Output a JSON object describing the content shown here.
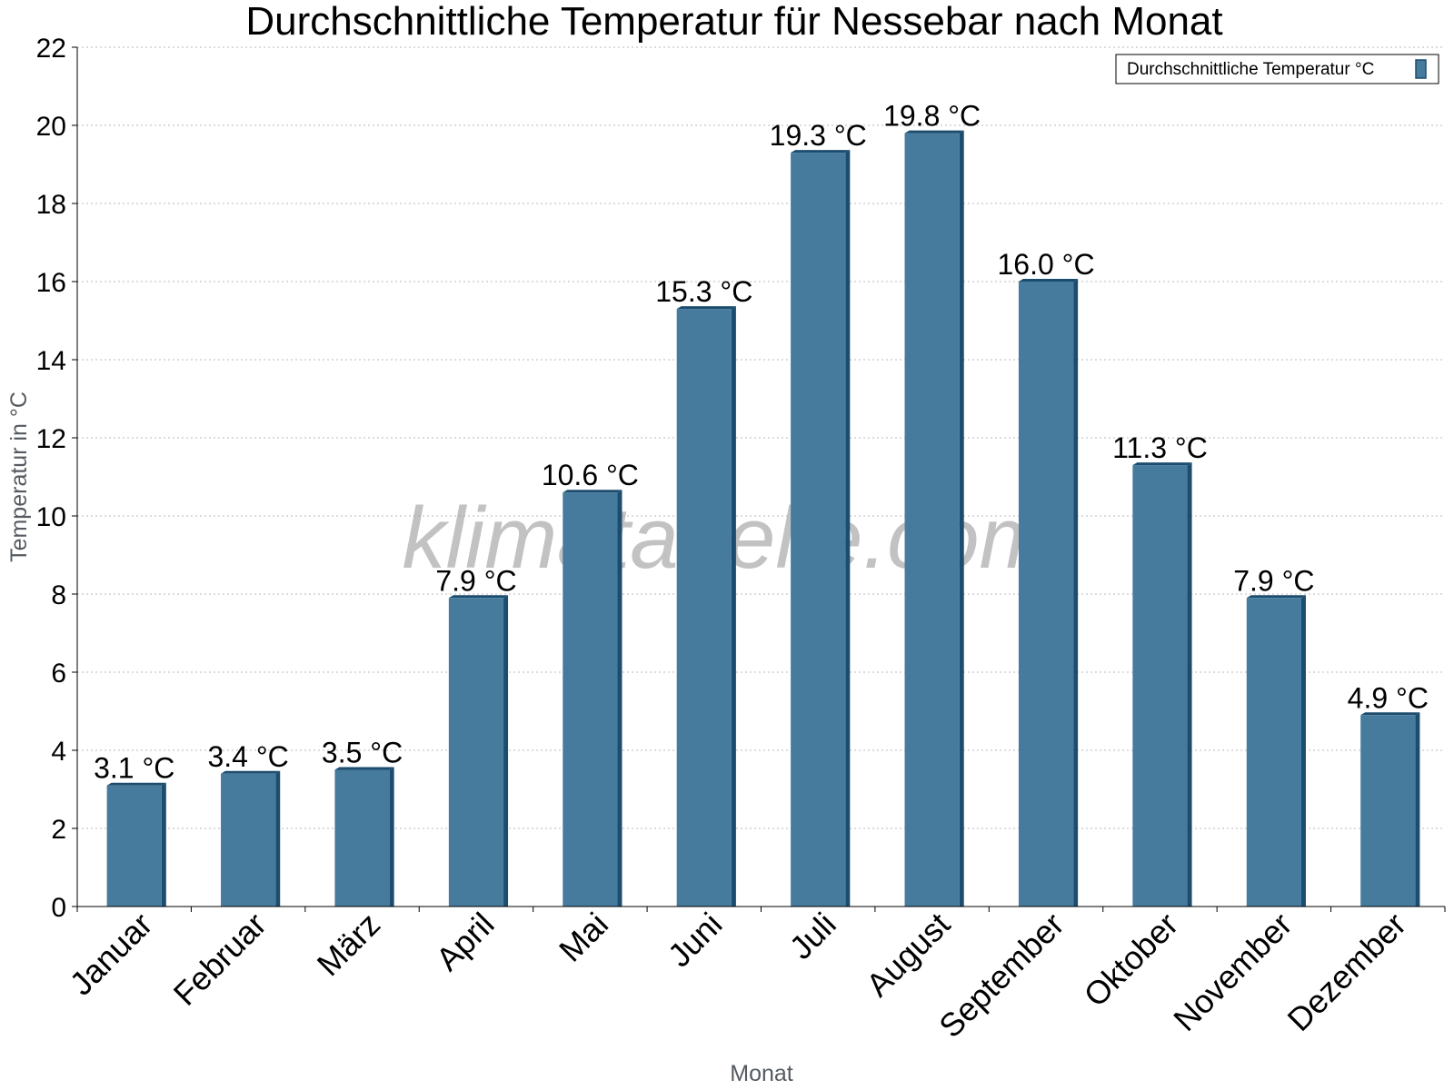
{
  "chart_data": {
    "type": "bar",
    "title": "Durchschnittliche Temperatur für Nessebar nach Monat",
    "xlabel": "Monat",
    "ylabel": "Temperatur in °C",
    "categories": [
      "Januar",
      "Februar",
      "März",
      "April",
      "Mai",
      "Juni",
      "Juli",
      "August",
      "September",
      "Oktober",
      "November",
      "Dezember"
    ],
    "series": [
      {
        "name": "Durchschnittliche Temperatur °C",
        "values": [
          3.1,
          3.4,
          3.5,
          7.9,
          10.6,
          15.3,
          19.3,
          19.8,
          16.0,
          11.3,
          7.9,
          4.9
        ],
        "labels": [
          "3.1 °C",
          "3.4 °C",
          "3.5 °C",
          "7.9 °C",
          "10.6 °C",
          "15.3 °C",
          "19.3 °C",
          "19.8 °C",
          "16.0 °C",
          "11.3 °C",
          "7.9 °C",
          "4.9 °C"
        ],
        "color": "#467b9e",
        "shade_color": "#1d4d6e"
      }
    ],
    "ylim": [
      0,
      22
    ],
    "yticks": [
      0,
      2,
      4,
      6,
      8,
      10,
      12,
      14,
      16,
      18,
      20,
      22
    ],
    "grid": true,
    "legend_position": "top-right"
  },
  "watermark": "klimatabelle.com"
}
